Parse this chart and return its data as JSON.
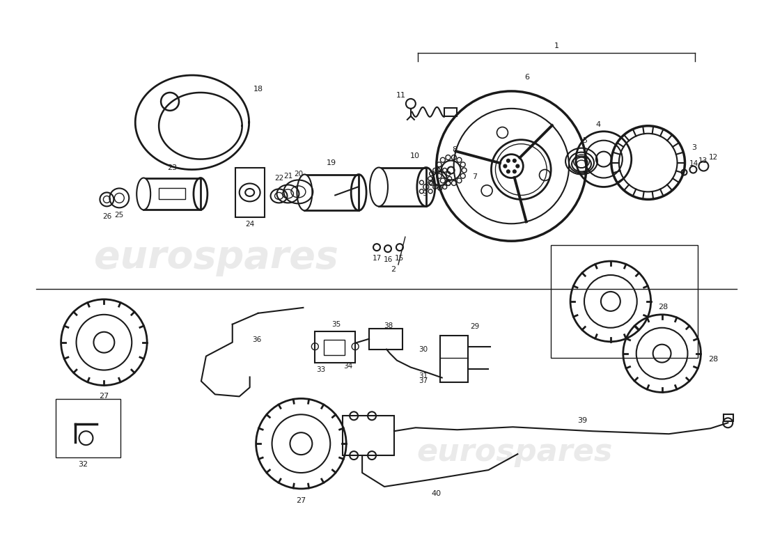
{
  "bg_color": "#ffffff",
  "line_color": "#1a1a1a",
  "fig_width": 11.0,
  "fig_height": 8.0,
  "dpi": 100
}
